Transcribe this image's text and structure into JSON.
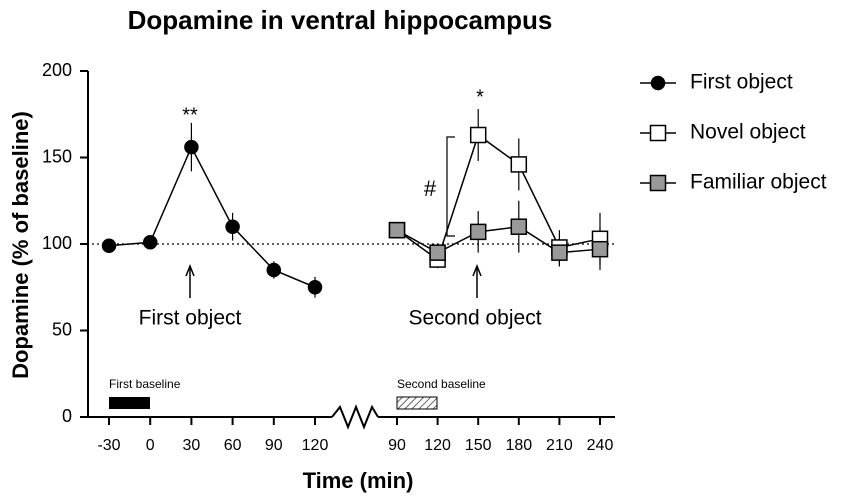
{
  "chart_data": {
    "type": "line",
    "title": "Dopamine in ventral hippocampus",
    "x_label": "Time (min)",
    "y_label": "Dopamine (% of baseline)",
    "categories": [
      "-30",
      "0",
      "30",
      "60",
      "90",
      "120",
      "90",
      "120",
      "150",
      "180",
      "210",
      "240"
    ],
    "series": [
      {
        "name": "First object",
        "color": "#000000",
        "marker": "circle",
        "values": [
          99,
          101,
          156,
          110,
          85,
          75,
          null,
          null,
          null,
          null,
          null,
          null
        ],
        "errors": [
          3,
          3,
          14,
          8,
          5,
          6,
          null,
          null,
          null,
          null,
          null,
          null
        ]
      },
      {
        "name": "Novel object",
        "color": "#ffffff",
        "marker": "square",
        "values": [
          null,
          null,
          null,
          null,
          null,
          null,
          108,
          91,
          163,
          146,
          98,
          103
        ],
        "errors": [
          null,
          null,
          null,
          null,
          null,
          null,
          4,
          5,
          15,
          15,
          10,
          15
        ]
      },
      {
        "name": "Familiar object",
        "color": "#999999",
        "marker": "square",
        "values": [
          null,
          null,
          null,
          null,
          null,
          null,
          108,
          95,
          107,
          110,
          95,
          97
        ],
        "errors": [
          null,
          null,
          null,
          null,
          null,
          null,
          4,
          4,
          12,
          15,
          8,
          12
        ]
      }
    ],
    "ylim": [
      0,
      200
    ],
    "yticks": [
      0,
      50,
      100,
      150,
      200
    ],
    "reference_line": 100,
    "annotations": {
      "first_significance": "**",
      "second_significance": "*",
      "novel_vs_familiar": "#",
      "first_event": "First object",
      "second_event": "Second object",
      "first_baseline": "First baseline",
      "second_baseline": "Second baseline"
    }
  }
}
